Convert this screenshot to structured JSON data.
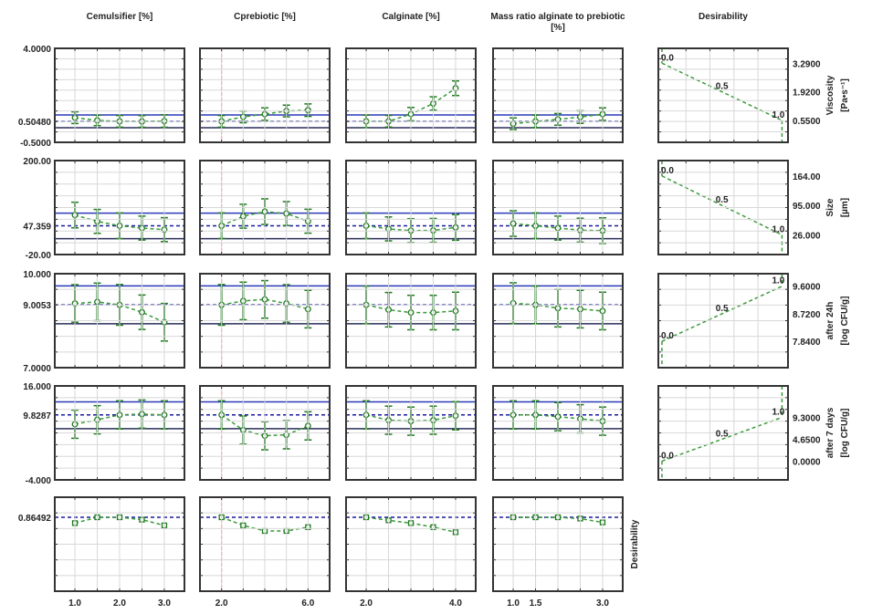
{
  "chart_data": {
    "type": "line",
    "grid": true,
    "colors": {
      "curve": "#3a9a3a",
      "error_bar": "#1f7a1f",
      "current_value_line": "#1a1aa0",
      "upper_limit_line": "#2a3ab8",
      "lower_limit_line": "#2a2f5a",
      "current_level_line": "#e02020",
      "grid": "#d8d8d8",
      "frame": "#333333"
    },
    "columns": [
      {
        "label": "Cemulsifier [%]",
        "levels": [
          1.0,
          1.5,
          2.0,
          2.5,
          3.0
        ],
        "current": 2.0,
        "xlim": [
          0.55,
          3.45
        ],
        "tick_labels": [
          "1.0",
          "2.0",
          "3.0"
        ],
        "ticks": [
          1.0,
          2.0,
          3.0
        ]
      },
      {
        "label": "Cprebiotic [%]",
        "levels": [
          2,
          3,
          4,
          5,
          6
        ],
        "current": 2.0,
        "xlim": [
          1.0,
          7.0
        ],
        "tick_labels": [
          "2.0",
          "6.0"
        ],
        "ticks": [
          2.0,
          6.0
        ]
      },
      {
        "label": "Calginate [%]",
        "levels": [
          2.0,
          2.5,
          3.0,
          3.5,
          4.0
        ],
        "current": 2.0,
        "xlim": [
          1.55,
          4.45
        ],
        "tick_labels": [
          "2.0",
          "4.0"
        ],
        "ticks": [
          2.0,
          4.0
        ]
      },
      {
        "label": "Mass ratio alginate to prebiotic [%]",
        "label_lines": [
          "Mass ratio alginate to prebiotic",
          "[%]"
        ],
        "levels": [
          1.0,
          1.5,
          2.0,
          2.5,
          3.0
        ],
        "current": 1.5,
        "xlim": [
          0.55,
          3.45
        ],
        "tick_labels": [
          "1.0",
          "1.5",
          "3.0"
        ],
        "ticks": [
          1.0,
          1.5,
          3.0
        ]
      }
    ],
    "desirability_column": {
      "label": "Desirability",
      "xlim": [
        -0.03,
        1.05
      ]
    },
    "rows": [
      {
        "name": "Viscosity [Pa•s⁻¹]",
        "label_lines": [
          "Viscosity",
          "[Pa•s⁻¹]"
        ],
        "ylim": [
          -0.5,
          4.0
        ],
        "tick_labels": [
          "4.0000",
          "0.50480",
          "-0.5000"
        ],
        "ticks": [
          4.0,
          0.5048,
          -0.5
        ],
        "current": 0.5048,
        "upper_limit": 0.81,
        "lower_limit": 0.2,
        "series": [
          {
            "y": [
              0.68,
              0.55,
              0.505,
              0.5,
              0.52
            ],
            "err": [
              0.28,
              0.25,
              0.28,
              0.28,
              0.3
            ]
          },
          {
            "y": [
              0.505,
              0.72,
              0.85,
              1.0,
              1.04
            ],
            "err": [
              0.28,
              0.28,
              0.3,
              0.28,
              0.3
            ]
          },
          {
            "y": [
              0.505,
              0.51,
              0.85,
              1.36,
              2.09
            ],
            "err": [
              0.3,
              0.28,
              0.32,
              0.32,
              0.35
            ]
          },
          {
            "y": [
              0.39,
              0.505,
              0.6,
              0.71,
              0.85
            ],
            "err": [
              0.28,
              0.3,
              0.28,
              0.3,
              0.3
            ]
          }
        ],
        "desirability": {
          "values": [
            3.29,
            1.92,
            0.55
          ],
          "levels": [
            0.0,
            0.5,
            1.0
          ],
          "labels": [
            "0.0",
            "0.5",
            "1.0"
          ],
          "tick_labels": [
            "3.2900",
            "1.9200",
            "0.5500"
          ],
          "tail": "down-at-1"
        }
      },
      {
        "name": "Size [µm]",
        "label_lines": [
          "Size",
          "[µm]"
        ],
        "ylim": [
          -20,
          200
        ],
        "tick_labels": [
          "200.00",
          "47.359",
          "-20.00"
        ],
        "ticks": [
          200,
          47.359,
          -20
        ],
        "current": 47.359,
        "upper_limit": 76.8,
        "lower_limit": 17,
        "series": [
          {
            "y": [
              72.5,
              57.6,
              47.4,
              42,
              38.3
            ],
            "err": [
              30,
              28,
              30,
              28,
              28
            ]
          },
          {
            "y": [
              47.4,
              69.7,
              80.4,
              76,
              58
            ],
            "err": [
              30,
              28,
              30,
              28,
              28
            ]
          },
          {
            "y": [
              47.4,
              40,
              36,
              36.5,
              43.5
            ],
            "err": [
              30,
              28,
              28,
              28,
              30
            ]
          },
          {
            "y": [
              52.6,
              47.4,
              42,
              37,
              36
            ],
            "err": [
              30,
              30,
              28,
              28,
              30
            ]
          }
        ],
        "desirability": {
          "values": [
            164,
            95,
            26
          ],
          "levels": [
            0.0,
            0.5,
            1.0
          ],
          "labels": [
            "0.0",
            "0.5",
            "1.0"
          ],
          "tick_labels": [
            "164.00",
            "95.000",
            "26.000"
          ],
          "tail": "down-at-1"
        }
      },
      {
        "name": "after 24h [log CFU/g]",
        "label_lines": [
          "after 24h",
          "[log CFU/g]"
        ],
        "ylim": [
          7.0,
          10.0
        ],
        "tick_labels": [
          "10.000",
          "9.0053",
          "7.0000"
        ],
        "ticks": [
          10.0,
          9.0053,
          7.0
        ],
        "current": 9.0053,
        "upper_limit": 9.61,
        "lower_limit": 8.4,
        "series": [
          {
            "y": [
              9.05,
              9.1,
              9.005,
              8.77,
              8.45
            ],
            "err": [
              0.6,
              0.6,
              0.65,
              0.55,
              0.6
            ]
          },
          {
            "y": [
              9.005,
              9.13,
              9.18,
              9.05,
              8.87
            ],
            "err": [
              0.65,
              0.6,
              0.6,
              0.6,
              0.6
            ]
          },
          {
            "y": [
              9.005,
              8.85,
              8.76,
              8.76,
              8.81
            ],
            "err": [
              0.6,
              0.55,
              0.55,
              0.55,
              0.6
            ]
          },
          {
            "y": [
              9.06,
              9.005,
              8.9,
              8.87,
              8.81
            ],
            "err": [
              0.65,
              0.6,
              0.6,
              0.6,
              0.6
            ]
          }
        ],
        "desirability": {
          "values": [
            7.84,
            8.72,
            9.6
          ],
          "levels": [
            0.0,
            0.5,
            1.0
          ],
          "labels": [
            "0.0",
            "0.5",
            "1.0"
          ],
          "tick_labels": [
            "9.6000",
            "8.7200",
            "7.8400"
          ],
          "tail": "down-at-0"
        }
      },
      {
        "name": "after 7 days [log CFU/g]",
        "label_lines": [
          "after 7 days",
          "[log CFU/g]"
        ],
        "ylim": [
          -4,
          16
        ],
        "tick_labels": [
          "16.000",
          "9.8287",
          "-4.000"
        ],
        "ticks": [
          16,
          9.8287,
          -4
        ],
        "current": 9.8287,
        "upper_limit": 12.6,
        "lower_limit": 6.9,
        "series": [
          {
            "y": [
              7.85,
              8.8,
              9.83,
              10.0,
              9.83
            ],
            "err": [
              3,
              3,
              3,
              3,
              3
            ]
          },
          {
            "y": [
              9.83,
              6.6,
              5.4,
              5.6,
              7.5
            ],
            "err": [
              3,
              3,
              3,
              3,
              3
            ]
          },
          {
            "y": [
              9.83,
              8.7,
              8.5,
              8.7,
              9.65
            ],
            "err": [
              3,
              3,
              3,
              3,
              3
            ]
          },
          {
            "y": [
              9.83,
              9.83,
              9.45,
              9.0,
              8.5
            ],
            "err": [
              3,
              3,
              3,
              3,
              3
            ]
          }
        ],
        "desirability": {
          "values": [
            0.0,
            4.65,
            9.3
          ],
          "levels": [
            0.0,
            0.5,
            1.0
          ],
          "labels": [
            "0.0",
            "0.5",
            "1.0"
          ],
          "tick_labels": [
            "9.3000",
            "4.6500",
            "0.0000"
          ],
          "tail": "both"
        }
      },
      {
        "name": "Desirability",
        "label_lines": [
          "Desirability"
        ],
        "ylim": [
          0,
          1.1
        ],
        "tick_labels": [
          "0.86492"
        ],
        "ticks": [
          0.86492
        ],
        "current": 0.86492,
        "series": [
          {
            "y": [
              0.797,
              0.865,
              0.865,
              0.837,
              0.77
            ]
          },
          {
            "y": [
              0.865,
              0.77,
              0.705,
              0.705,
              0.75
            ]
          },
          {
            "y": [
              0.865,
              0.83,
              0.797,
              0.75,
              0.69
            ]
          },
          {
            "y": [
              0.865,
              0.865,
              0.865,
              0.85,
              0.805
            ]
          }
        ]
      }
    ]
  }
}
